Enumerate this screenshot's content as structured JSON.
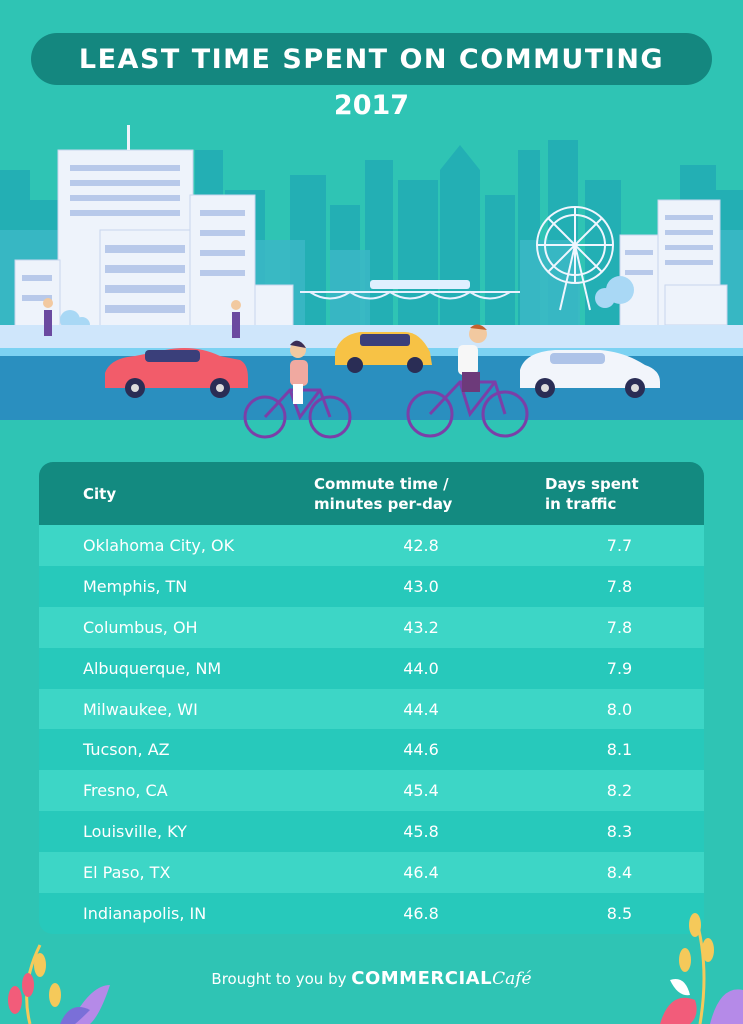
{
  "title": "LEAST TIME SPENT ON COMMUTING",
  "year": "2017",
  "table": {
    "headers": {
      "city": "City",
      "commute_line1": "Commute time /",
      "commute_line2": "minutes per-day",
      "days_line1": "Days spent",
      "days_line2": "in traffic"
    },
    "rows": [
      {
        "city": "Oklahoma City, OK",
        "commute": "42.8",
        "days": "7.7"
      },
      {
        "city": "Memphis, TN",
        "commute": "43.0",
        "days": "7.8"
      },
      {
        "city": "Columbus, OH",
        "commute": "43.2",
        "days": "7.8"
      },
      {
        "city": "Albuquerque, NM",
        "commute": "44.0",
        "days": "7.9"
      },
      {
        "city": "Milwaukee, WI",
        "commute": "44.4",
        "days": "8.0"
      },
      {
        "city": "Tucson, AZ",
        "commute": "44.6",
        "days": "8.1"
      },
      {
        "city": "Fresno, CA",
        "commute": "45.4",
        "days": "8.2"
      },
      {
        "city": "Louisville, KY",
        "commute": "45.8",
        "days": "8.3"
      },
      {
        "city": "El Paso, TX",
        "commute": "46.4",
        "days": "8.4"
      },
      {
        "city": "Indianapolis, IN",
        "commute": "46.8",
        "days": "8.5"
      }
    ]
  },
  "footer": {
    "prefix": "Brought to you by",
    "brand": "COMMERCIAL",
    "brand_suffix": "Café"
  },
  "colors": {
    "background": "#2fc4b4",
    "title_pill": "#14877f",
    "table_header": "#138a80",
    "row_light": "#3dd6c6",
    "row_dark": "#27c9bb"
  },
  "illustration": {
    "icons": [
      "skyline-illustration",
      "ferris-wheel-icon",
      "car-icon",
      "bicycle-icon",
      "plant-icon"
    ]
  }
}
